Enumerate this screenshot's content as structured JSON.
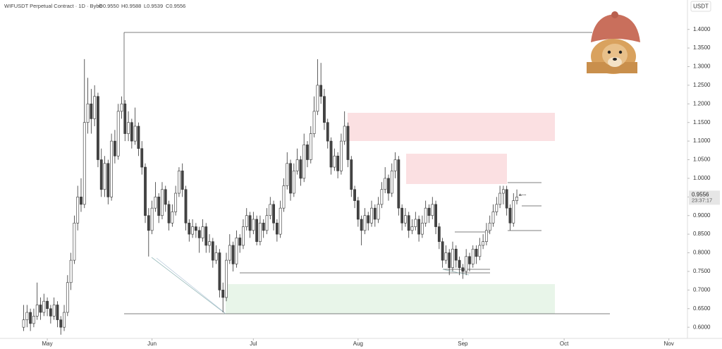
{
  "chart_data": {
    "type": "candlestick",
    "symbol": "WIFUSDT Perpetual Contract · 1D · Bybit",
    "ohlc_labels": [
      "O0.9550",
      "H0.9588",
      "L0.9539",
      "C0.9556"
    ],
    "currency": "USDT",
    "countdown": "23:37:17",
    "candle_colors": {
      "up": "#ffffff",
      "down": "#444444",
      "outline": "#333333"
    },
    "xlim": [
      -7,
      196.5
    ],
    "xticks": [
      {
        "value": 7,
        "label": "May"
      },
      {
        "value": 38,
        "label": "Jun"
      },
      {
        "value": 68,
        "label": "Jul"
      },
      {
        "value": 99,
        "label": "Aug"
      },
      {
        "value": 130,
        "label": "Sep"
      },
      {
        "value": 160,
        "label": "Oct"
      },
      {
        "value": 191,
        "label": "Nov"
      }
    ],
    "ylim": [
      0.57,
      1.46
    ],
    "yticks": [
      {
        "value": 0.6,
        "label": "0.6000"
      },
      {
        "value": 0.65,
        "label": "0.6500"
      },
      {
        "value": 0.7,
        "label": "0.7000"
      },
      {
        "value": 0.75,
        "label": "0.7500"
      },
      {
        "value": 0.8,
        "label": "0.8000"
      },
      {
        "value": 0.85,
        "label": "0.8500"
      },
      {
        "value": 0.9,
        "label": "0.9000"
      },
      {
        "value": 0.95,
        "label": "0.9500"
      },
      {
        "value": 1.0,
        "label": "1.0000"
      },
      {
        "value": 1.05,
        "label": "1.0500"
      },
      {
        "value": 1.1,
        "label": "1.1000"
      },
      {
        "value": 1.15,
        "label": "1.1500"
      },
      {
        "value": 1.2,
        "label": "1.2000"
      },
      {
        "value": 1.25,
        "label": "1.2500"
      },
      {
        "value": 1.3,
        "label": "1.3000"
      },
      {
        "value": 1.35,
        "label": "1.3500"
      },
      {
        "value": 1.4,
        "label": "1.4000"
      }
    ],
    "candles": [
      [
        0.6,
        0.66,
        0.59,
        0.62
      ],
      [
        0.62,
        0.66,
        0.6,
        0.64
      ],
      [
        0.64,
        0.65,
        0.59,
        0.61
      ],
      [
        0.61,
        0.65,
        0.6,
        0.63
      ],
      [
        0.63,
        0.72,
        0.62,
        0.66
      ],
      [
        0.66,
        0.68,
        0.62,
        0.64
      ],
      [
        0.64,
        0.69,
        0.63,
        0.67
      ],
      [
        0.67,
        0.68,
        0.63,
        0.65
      ],
      [
        0.65,
        0.66,
        0.61,
        0.63
      ],
      [
        0.63,
        0.68,
        0.62,
        0.66
      ],
      [
        0.66,
        0.67,
        0.6,
        0.62
      ],
      [
        0.62,
        0.63,
        0.58,
        0.6
      ],
      [
        0.6,
        0.66,
        0.59,
        0.64
      ],
      [
        0.64,
        0.74,
        0.63,
        0.72
      ],
      [
        0.72,
        0.8,
        0.7,
        0.78
      ],
      [
        0.78,
        0.9,
        0.77,
        0.88
      ],
      [
        0.88,
        0.98,
        0.86,
        0.95
      ],
      [
        0.95,
        1.0,
        0.91,
        0.93
      ],
      [
        0.93,
        1.32,
        0.92,
        1.15
      ],
      [
        1.15,
        1.27,
        1.12,
        1.2
      ],
      [
        1.2,
        1.24,
        1.12,
        1.16
      ],
      [
        1.16,
        1.25,
        1.14,
        1.22
      ],
      [
        1.22,
        1.23,
        1.03,
        1.05
      ],
      [
        1.05,
        1.08,
        0.95,
        0.97
      ],
      [
        0.97,
        1.06,
        0.95,
        1.04
      ],
      [
        1.04,
        1.05,
        0.93,
        0.95
      ],
      [
        0.95,
        1.12,
        0.94,
        1.1
      ],
      [
        1.1,
        1.13,
        1.04,
        1.06
      ],
      [
        1.06,
        1.2,
        1.05,
        1.18
      ],
      [
        1.18,
        1.22,
        1.16,
        1.2
      ],
      [
        1.2,
        1.21,
        1.1,
        1.12
      ],
      [
        1.12,
        1.18,
        1.1,
        1.15
      ],
      [
        1.15,
        1.16,
        1.08,
        1.1
      ],
      [
        1.1,
        1.19,
        1.09,
        1.14
      ],
      [
        1.14,
        1.15,
        1.06,
        1.08
      ],
      [
        1.08,
        1.1,
        1.01,
        1.03
      ],
      [
        1.03,
        1.04,
        0.88,
        0.9
      ],
      [
        0.9,
        0.92,
        0.79,
        0.86
      ],
      [
        0.86,
        0.94,
        0.85,
        0.92
      ],
      [
        0.92,
        0.99,
        0.91,
        0.95
      ],
      [
        0.95,
        0.96,
        0.88,
        0.9
      ],
      [
        0.9,
        0.99,
        0.89,
        0.97
      ],
      [
        0.97,
        0.98,
        0.91,
        0.93
      ],
      [
        0.93,
        0.94,
        0.86,
        0.88
      ],
      [
        0.88,
        0.93,
        0.87,
        0.91
      ],
      [
        0.91,
        0.98,
        0.9,
        0.96
      ],
      [
        0.96,
        1.03,
        0.95,
        1.02
      ],
      [
        1.02,
        1.04,
        0.95,
        0.97
      ],
      [
        0.97,
        0.98,
        0.86,
        0.88
      ],
      [
        0.88,
        0.89,
        0.83,
        0.85
      ],
      [
        0.85,
        0.89,
        0.84,
        0.87
      ],
      [
        0.87,
        0.88,
        0.84,
        0.86
      ],
      [
        0.86,
        0.87,
        0.8,
        0.84
      ],
      [
        0.84,
        0.89,
        0.83,
        0.87
      ],
      [
        0.87,
        0.88,
        0.8,
        0.82
      ],
      [
        0.82,
        0.85,
        0.8,
        0.83
      ],
      [
        0.83,
        0.84,
        0.76,
        0.78
      ],
      [
        0.78,
        0.82,
        0.77,
        0.8
      ],
      [
        0.8,
        0.81,
        0.68,
        0.7
      ],
      [
        0.7,
        0.72,
        0.64,
        0.68
      ],
      [
        0.68,
        0.8,
        0.67,
        0.78
      ],
      [
        0.78,
        0.85,
        0.77,
        0.82
      ],
      [
        0.82,
        0.83,
        0.75,
        0.77
      ],
      [
        0.77,
        0.86,
        0.76,
        0.84
      ],
      [
        0.84,
        0.85,
        0.8,
        0.82
      ],
      [
        0.82,
        0.89,
        0.81,
        0.87
      ],
      [
        0.87,
        0.92,
        0.86,
        0.9
      ],
      [
        0.9,
        0.91,
        0.84,
        0.86
      ],
      [
        0.86,
        0.91,
        0.85,
        0.89
      ],
      [
        0.89,
        0.9,
        0.82,
        0.83
      ],
      [
        0.83,
        0.9,
        0.82,
        0.88
      ],
      [
        0.88,
        0.89,
        0.84,
        0.86
      ],
      [
        0.86,
        0.92,
        0.85,
        0.9
      ],
      [
        0.9,
        0.95,
        0.89,
        0.93
      ],
      [
        0.93,
        0.94,
        0.86,
        0.88
      ],
      [
        0.88,
        0.89,
        0.83,
        0.85
      ],
      [
        0.85,
        0.94,
        0.84,
        0.92
      ],
      [
        0.92,
        1.0,
        0.91,
        0.98
      ],
      [
        0.98,
        1.07,
        0.97,
        1.04
      ],
      [
        1.04,
        1.05,
        0.94,
        0.96
      ],
      [
        0.96,
        1.04,
        0.95,
        1.02
      ],
      [
        1.02,
        1.08,
        1.01,
        1.05
      ],
      [
        1.05,
        1.06,
        0.98,
        1.0
      ],
      [
        1.0,
        1.12,
        0.99,
        1.09
      ],
      [
        1.09,
        1.1,
        1.03,
        1.05
      ],
      [
        1.05,
        1.14,
        1.04,
        1.12
      ],
      [
        1.12,
        1.22,
        1.11,
        1.18
      ],
      [
        1.18,
        1.32,
        1.17,
        1.25
      ],
      [
        1.25,
        1.31,
        1.2,
        1.22
      ],
      [
        1.22,
        1.24,
        1.13,
        1.15
      ],
      [
        1.15,
        1.16,
        1.08,
        1.1
      ],
      [
        1.1,
        1.11,
        1.01,
        1.03
      ],
      [
        1.03,
        1.08,
        1.02,
        1.06
      ],
      [
        1.06,
        1.07,
        1.0,
        1.02
      ],
      [
        1.02,
        1.12,
        1.01,
        1.1
      ],
      [
        1.1,
        1.18,
        1.09,
        1.14
      ],
      [
        1.14,
        1.15,
        1.03,
        1.05
      ],
      [
        1.05,
        1.06,
        0.95,
        0.97
      ],
      [
        0.97,
        0.98,
        0.92,
        0.94
      ],
      [
        0.94,
        0.95,
        0.87,
        0.89
      ],
      [
        0.89,
        0.9,
        0.82,
        0.86
      ],
      [
        0.86,
        0.92,
        0.85,
        0.9
      ],
      [
        0.9,
        0.91,
        0.86,
        0.88
      ],
      [
        0.88,
        0.94,
        0.87,
        0.92
      ],
      [
        0.92,
        0.93,
        0.87,
        0.89
      ],
      [
        0.89,
        0.95,
        0.88,
        0.93
      ],
      [
        0.93,
        0.99,
        0.92,
        0.97
      ],
      [
        0.97,
        1.03,
        0.96,
        1.0
      ],
      [
        1.0,
        1.01,
        0.94,
        0.96
      ],
      [
        0.96,
        1.04,
        0.95,
        1.02
      ],
      [
        1.02,
        1.07,
        1.0,
        1.05
      ],
      [
        1.05,
        1.06,
        0.9,
        0.92
      ],
      [
        0.92,
        0.93,
        0.86,
        0.88
      ],
      [
        0.88,
        0.92,
        0.87,
        0.9
      ],
      [
        0.9,
        0.91,
        0.84,
        0.86
      ],
      [
        0.86,
        0.89,
        0.85,
        0.87
      ],
      [
        0.87,
        0.91,
        0.86,
        0.89
      ],
      [
        0.89,
        0.9,
        0.83,
        0.85
      ],
      [
        0.85,
        0.9,
        0.84,
        0.88
      ],
      [
        0.88,
        0.94,
        0.87,
        0.92
      ],
      [
        0.92,
        0.93,
        0.88,
        0.9
      ],
      [
        0.9,
        0.95,
        0.89,
        0.93
      ],
      [
        0.93,
        0.94,
        0.85,
        0.87
      ],
      [
        0.87,
        0.88,
        0.81,
        0.83
      ],
      [
        0.83,
        0.84,
        0.76,
        0.78
      ],
      [
        0.78,
        0.82,
        0.77,
        0.8
      ],
      [
        0.8,
        0.81,
        0.74,
        0.76
      ],
      [
        0.76,
        0.83,
        0.75,
        0.81
      ],
      [
        0.81,
        0.82,
        0.76,
        0.78
      ],
      [
        0.78,
        0.79,
        0.74,
        0.76
      ],
      [
        0.76,
        0.77,
        0.73,
        0.75
      ],
      [
        0.75,
        0.81,
        0.74,
        0.79
      ],
      [
        0.79,
        0.8,
        0.75,
        0.77
      ],
      [
        0.77,
        0.82,
        0.76,
        0.81
      ],
      [
        0.81,
        0.82,
        0.77,
        0.79
      ],
      [
        0.79,
        0.84,
        0.78,
        0.82
      ],
      [
        0.82,
        0.85,
        0.81,
        0.83
      ],
      [
        0.83,
        0.88,
        0.82,
        0.86
      ],
      [
        0.86,
        0.9,
        0.85,
        0.88
      ],
      [
        0.88,
        0.93,
        0.87,
        0.91
      ],
      [
        0.91,
        0.95,
        0.9,
        0.93
      ],
      [
        0.93,
        0.98,
        0.92,
        0.96
      ],
      [
        0.96,
        0.98,
        0.93,
        0.97
      ],
      [
        0.97,
        0.98,
        0.9,
        0.92
      ],
      [
        0.92,
        0.93,
        0.86,
        0.88
      ],
      [
        0.88,
        0.96,
        0.87,
        0.94
      ],
      [
        0.94,
        0.97,
        0.93,
        0.95
      ],
      [
        0.955,
        0.9588,
        0.9539,
        0.9556
      ]
    ]
  }
}
